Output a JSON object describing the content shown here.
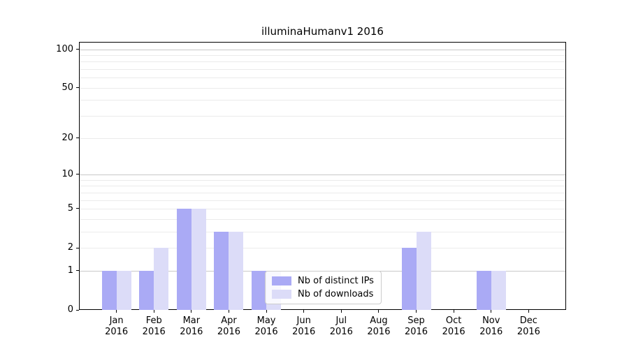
{
  "figure": {
    "title": "illuminaHumanv1 2016"
  },
  "legend": {
    "items": [
      {
        "label": "Nb of distinct IPs",
        "color": "#aaaaf5"
      },
      {
        "label": "Nb of downloads",
        "color": "#dcdcf8"
      }
    ]
  },
  "chart_data": {
    "type": "bar",
    "title": "illuminaHumanv1 2016",
    "categories": [
      "Jan 2016",
      "Feb 2016",
      "Mar 2016",
      "Apr 2016",
      "May 2016",
      "Jun 2016",
      "Jul 2016",
      "Aug 2016",
      "Sep 2016",
      "Oct 2016",
      "Nov 2016",
      "Dec 2016"
    ],
    "series": [
      {
        "name": "Nb of distinct IPs",
        "color": "#aaaaf5",
        "values": [
          1,
          1,
          5,
          3,
          1,
          0,
          0,
          0,
          2,
          0,
          1,
          0
        ]
      },
      {
        "name": "Nb of downloads",
        "color": "#dcdcf8",
        "values": [
          1,
          2,
          5,
          3,
          1,
          0,
          0,
          0,
          3,
          0,
          1,
          0
        ]
      }
    ],
    "xlabel": "",
    "ylabel": "",
    "yscale": "log1p",
    "ylim": [
      0,
      114
    ],
    "yticks": [
      0,
      1,
      2,
      5,
      10,
      20,
      50,
      100
    ],
    "major_gridlines": [
      1,
      10,
      100
    ],
    "minor_gridlines": [
      2,
      3,
      4,
      6,
      7,
      8,
      9,
      20,
      30,
      40,
      60,
      70,
      80,
      90
    ],
    "minor_gridlines_on_ticks": [
      2,
      5,
      20,
      50
    ],
    "grid": true,
    "legend_position": "lower-center"
  }
}
